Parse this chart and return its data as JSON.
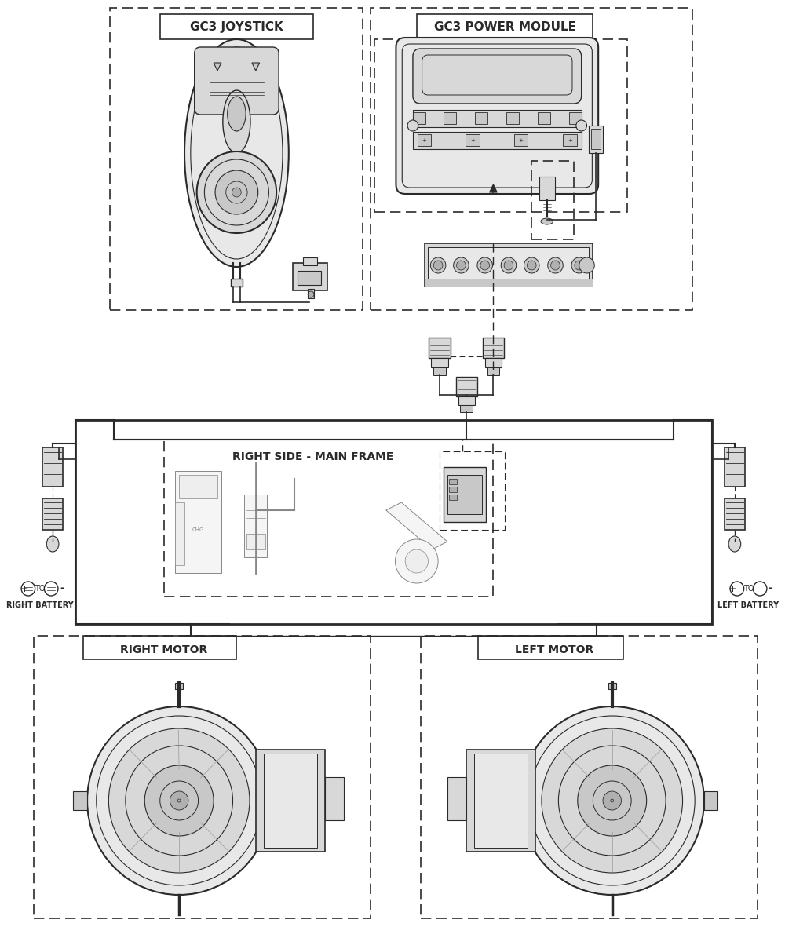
{
  "bg_color": "#ffffff",
  "line_color": "#2a2a2a",
  "dash_color": "#2a2a2a",
  "gray1": "#e8e8e8",
  "gray2": "#d8d8d8",
  "gray3": "#c8c8c8",
  "gray4": "#b0b0b0",
  "title_js": "GC3 JOYSTICK",
  "title_pm": "GC3 POWER MODULE",
  "label_main_frame": "RIGHT SIDE - MAIN FRAME",
  "label_right_motor": "RIGHT MOTOR",
  "label_left_motor": "LEFT MOTOR",
  "label_right_battery": "RIGHT BATTERY",
  "label_left_battery": "LEFT BATTERY",
  "fig_width": 10.0,
  "fig_height": 11.95,
  "dpi": 100
}
